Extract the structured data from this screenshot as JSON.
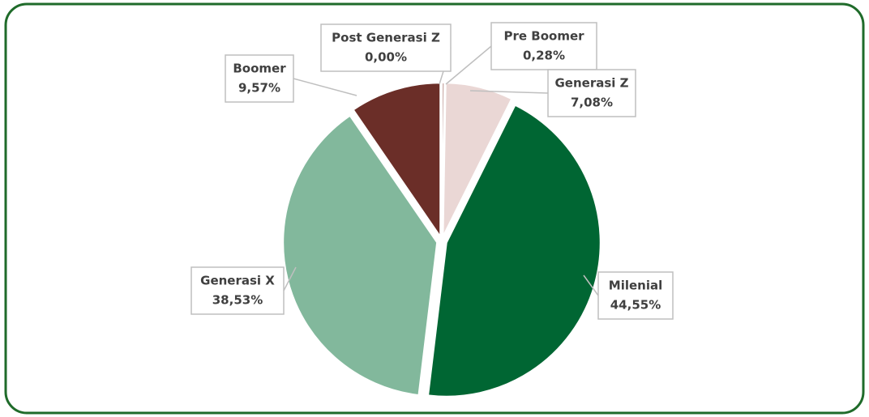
{
  "chart_data": {
    "type": "pie",
    "categories": [
      "Pre Boomer",
      "Generasi Z",
      "Milenial",
      "Generasi X",
      "Boomer",
      "Post Generasi Z"
    ],
    "values": [
      0.28,
      7.08,
      44.55,
      38.53,
      9.57,
      0.0
    ],
    "value_labels": [
      "0,28%",
      "7,08%",
      "44,55%",
      "38,53%",
      "9,57%",
      "0,00%"
    ],
    "colors": [
      "#c9a9a6",
      "#ead7d5",
      "#006633",
      "#82b89c",
      "#6b2e28",
      "#999999"
    ]
  }
}
